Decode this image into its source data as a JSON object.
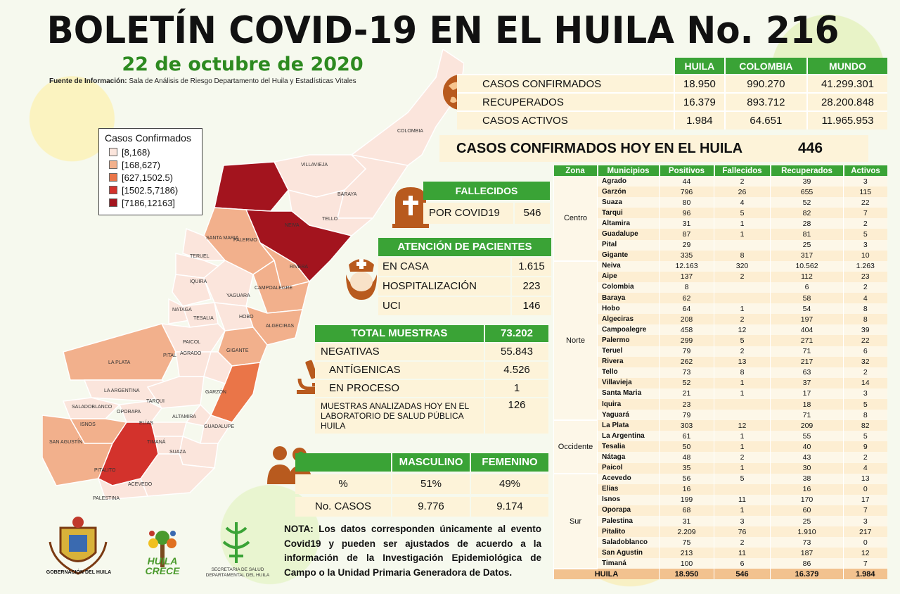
{
  "header": {
    "title": "BOLETÍN COVID-19 EN EL HUILA No. 216",
    "date": "22 de octubre de 2020",
    "source_label": "Fuente de Información:",
    "source_text": "Sala de Análisis de Riesgo Departamento del Huila y Estadísticas Vitales"
  },
  "legend": {
    "title": "Casos Confirmados",
    "items": [
      {
        "label": "[8,168)",
        "color": "#fbe5dc"
      },
      {
        "label": "[168,627)",
        "color": "#f2b08c"
      },
      {
        "label": "[627,1502.5)",
        "color": "#ea7548"
      },
      {
        "label": "[1502.5,7186)",
        "color": "#d3322c"
      },
      {
        "label": "[7186,12163]",
        "color": "#a3141e"
      }
    ]
  },
  "map_labels": [
    "COLOMBIA",
    "VILLAVIEJA",
    "BARAYA",
    "TELLO",
    "NEIVA",
    "SANTA MARIA",
    "PALERMO",
    "TERUEL",
    "RIVERA",
    "IQUIRA",
    "CAMPOALEGRE",
    "YAGUARA",
    "NATAGA",
    "TESALIA",
    "HOBO",
    "ALGECIRAS",
    "PAICOL",
    "GIGANTE",
    "LA PLATA",
    "PITAL",
    "AGRADO",
    "LA ARGENTINA",
    "TARQUI",
    "GARZÓN",
    "SALADOBLANCO",
    "OPORAPA",
    "ALTAMIRA",
    "ISNOS",
    "ELÍAS",
    "GUADALUPE",
    "TIMANÁ",
    "SAN AGUSTÍN",
    "SUAZA",
    "PITALITO",
    "PALESTINA",
    "ACEVEDO"
  ],
  "summary": {
    "columns": [
      "HUILA",
      "COLOMBIA",
      "MUNDO"
    ],
    "rows": [
      {
        "label": "CASOS CONFIRMADOS",
        "values": [
          "18.950",
          "990.270",
          "41.299.301"
        ]
      },
      {
        "label": "RECUPERADOS",
        "values": [
          "16.379",
          "893.712",
          "28.200.848"
        ]
      },
      {
        "label": "CASOS ACTIVOS",
        "values": [
          "1.984",
          "64.651",
          "11.965.953"
        ]
      }
    ]
  },
  "hoy": {
    "label": "CASOS CONFIRMADOS HOY EN EL HUILA",
    "value": "446"
  },
  "fallecidos": {
    "title": "FALLECIDOS",
    "label": "POR COVID19",
    "value": "546"
  },
  "atencion": {
    "title": "ATENCIÓN DE PACIENTES",
    "rows": [
      {
        "label": "EN CASA",
        "value": "1.615"
      },
      {
        "label": "HOSPITALIZACIÓN",
        "value": "223"
      },
      {
        "label": "UCI",
        "value": "146"
      }
    ]
  },
  "muestras": {
    "title": "TOTAL MUESTRAS",
    "total": "73.202",
    "rows": [
      {
        "label": "NEGATIVAS",
        "value": "55.843"
      },
      {
        "label": "ANTÍGENICAS",
        "value": "4.526"
      },
      {
        "label": "EN PROCESO",
        "value": "1"
      }
    ],
    "lab_label": "MUESTRAS ANALIZADAS HOY EN EL LABORATORIO DE SALUD PÚBLICA HUILA",
    "lab_value": "126"
  },
  "genero": {
    "columns": [
      "MASCULINO",
      "FEMENINO"
    ],
    "rows": [
      {
        "label": "%",
        "values": [
          "51%",
          "49%"
        ]
      },
      {
        "label": "No. CASOS",
        "values": [
          "9.776",
          "9.174"
        ]
      }
    ]
  },
  "nota": "NOTA: Los datos corresponden únicamente al evento Covid19 y pueden ser ajustados de acuerdo a la información de la Investigación Epidemiológica de Campo o la Unidad Primaria Generadora de Datos.",
  "logos": {
    "gobernacion": "GOBERNACIÓN DEL HUILA",
    "huila_crece": "HUILA CRECE",
    "secretaria": "SECRETARIA DE SALUD DEPARTAMENTAL DEL HUILA"
  },
  "municipios": {
    "columns": [
      "Zona",
      "Municipios",
      "Positivos",
      "Fallecidos",
      "Recuperados",
      "Activos"
    ],
    "zones": [
      {
        "name": "Centro",
        "rows": [
          [
            "Agrado",
            "44",
            "2",
            "39",
            "3"
          ],
          [
            "Garzón",
            "796",
            "26",
            "655",
            "115"
          ],
          [
            "Suaza",
            "80",
            "4",
            "52",
            "22"
          ],
          [
            "Tarqui",
            "96",
            "5",
            "82",
            "7"
          ],
          [
            "Altamira",
            "31",
            "1",
            "28",
            "2"
          ],
          [
            "Guadalupe",
            "87",
            "1",
            "81",
            "5"
          ],
          [
            "Pital",
            "29",
            "",
            "25",
            "3"
          ],
          [
            "Gigante",
            "335",
            "8",
            "317",
            "10"
          ]
        ]
      },
      {
        "name": "Norte",
        "rows": [
          [
            "Neiva",
            "12.163",
            "320",
            "10.562",
            "1.263"
          ],
          [
            "Aipe",
            "137",
            "2",
            "112",
            "23"
          ],
          [
            "Colombia",
            "8",
            "",
            "6",
            "2"
          ],
          [
            "Baraya",
            "62",
            "",
            "58",
            "4"
          ],
          [
            "Hobo",
            "64",
            "1",
            "54",
            "8"
          ],
          [
            "Algeciras",
            "208",
            "2",
            "197",
            "8"
          ],
          [
            "Campoalegre",
            "458",
            "12",
            "404",
            "39"
          ],
          [
            "Palermo",
            "299",
            "5",
            "271",
            "22"
          ],
          [
            "Teruel",
            "79",
            "2",
            "71",
            "6"
          ],
          [
            "Rivera",
            "262",
            "13",
            "217",
            "32"
          ],
          [
            "Tello",
            "73",
            "8",
            "63",
            "2"
          ],
          [
            "Villavieja",
            "52",
            "1",
            "37",
            "14"
          ],
          [
            "Santa Maria",
            "21",
            "1",
            "17",
            "3"
          ],
          [
            "Iquira",
            "23",
            "",
            "18",
            "5"
          ],
          [
            "Yaguará",
            "79",
            "",
            "71",
            "8"
          ]
        ]
      },
      {
        "name": "Occidente",
        "rows": [
          [
            "La Plata",
            "303",
            "12",
            "209",
            "82"
          ],
          [
            "La Argentina",
            "61",
            "1",
            "55",
            "5"
          ],
          [
            "Tesalia",
            "50",
            "1",
            "40",
            "9"
          ],
          [
            "Nátaga",
            "48",
            "2",
            "43",
            "2"
          ],
          [
            "Paicol",
            "35",
            "1",
            "30",
            "4"
          ]
        ]
      },
      {
        "name": "Sur",
        "rows": [
          [
            "Acevedo",
            "56",
            "5",
            "38",
            "13"
          ],
          [
            "Elias",
            "16",
            "",
            "16",
            "0"
          ],
          [
            "Isnos",
            "199",
            "11",
            "170",
            "17"
          ],
          [
            "Oporapa",
            "68",
            "1",
            "60",
            "7"
          ],
          [
            "Palestina",
            "31",
            "3",
            "25",
            "3"
          ],
          [
            "Pitalito",
            "2.209",
            "76",
            "1.910",
            "217"
          ],
          [
            "Saladoblanco",
            "75",
            "2",
            "73",
            "0"
          ],
          [
            "San Agustin",
            "213",
            "11",
            "187",
            "12"
          ],
          [
            "Timaná",
            "100",
            "6",
            "86",
            "7"
          ]
        ]
      }
    ],
    "total": [
      "HUILA",
      "18.950",
      "546",
      "16.379",
      "1.984"
    ]
  }
}
